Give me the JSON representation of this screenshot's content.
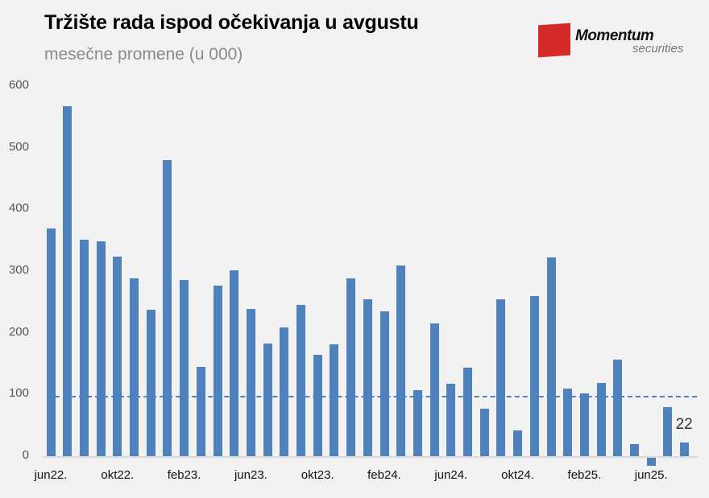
{
  "header": {
    "title": "Tržište rada ispod očekivanja u avgustu",
    "subtitle": "mesečne promene (u 000)"
  },
  "logo": {
    "main": "Momentum",
    "sub": "securities"
  },
  "chart_data": {
    "type": "bar",
    "title": "Tržište rada ispod očekivanja u avgustu",
    "subtitle": "mesečne promene (u 000)",
    "xlabel": "",
    "ylabel": "",
    "ylim": [
      0,
      600
    ],
    "yticks": [
      0,
      100,
      200,
      300,
      400,
      500,
      600
    ],
    "xtick_labels": [
      "jun22.",
      "okt22.",
      "feb23.",
      "jun23.",
      "okt23.",
      "feb24.",
      "jun24.",
      "okt24.",
      "feb25.",
      "jun25."
    ],
    "categories": [
      "jun22",
      "jul22",
      "avg22",
      "sep22",
      "okt22",
      "nov22",
      "dec22",
      "jan23",
      "feb23",
      "mar23",
      "apr23",
      "maj23",
      "jun23",
      "jul23",
      "avg23",
      "sep23",
      "okt23",
      "nov23",
      "dec23",
      "jan24",
      "feb24",
      "mar24",
      "apr24",
      "maj24",
      "jun24",
      "jul24",
      "avg24",
      "sep24",
      "okt24",
      "nov24",
      "dec24",
      "jan25",
      "feb25",
      "mar25",
      "apr25",
      "maj25",
      "jun25",
      "jul25",
      "avg25"
    ],
    "values": [
      369,
      568,
      351,
      348,
      324,
      288,
      237,
      480,
      286,
      145,
      276,
      301,
      239,
      183,
      209,
      245,
      164,
      181,
      288,
      254,
      235,
      309,
      107,
      215,
      118,
      143,
      77,
      254,
      42,
      259,
      322,
      109,
      102,
      119,
      157,
      19,
      -13,
      79,
      22
    ],
    "reference_line": {
      "value": 97,
      "style": "dashed"
    },
    "annotations": [
      {
        "category": "avg25",
        "text": "22"
      }
    ],
    "grid": false,
    "legend": null,
    "bar_color": "#4f81bd"
  }
}
